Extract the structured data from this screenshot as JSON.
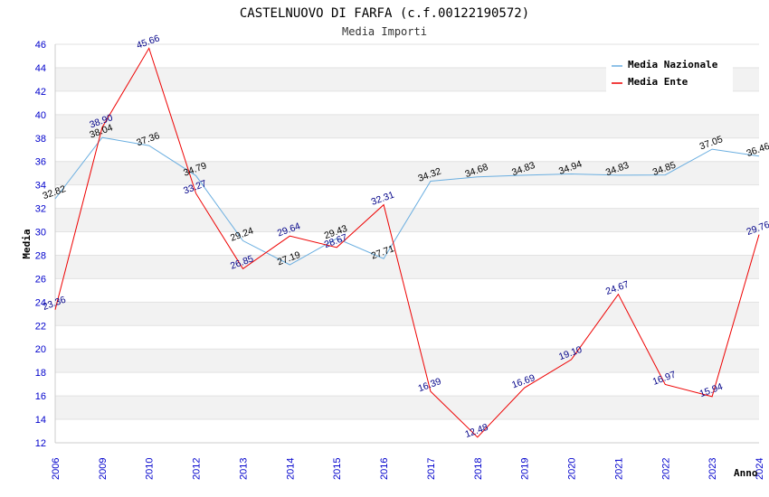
{
  "chart_data": {
    "type": "line",
    "title": "CASTELNUOVO DI FARFA (c.f.00122190572)",
    "subtitle": "Media Importi",
    "xlabel": "Anno",
    "ylabel": "Media",
    "categories": [
      "2006",
      "2009",
      "2010",
      "2012",
      "2013",
      "2014",
      "2015",
      "2016",
      "2017",
      "2018",
      "2019",
      "2020",
      "2021",
      "2022",
      "2023",
      "2024"
    ],
    "ylim": [
      12,
      46
    ],
    "yticks": [
      12,
      14,
      16,
      18,
      20,
      22,
      24,
      26,
      28,
      30,
      32,
      34,
      36,
      38,
      40,
      42,
      44,
      46
    ],
    "legend_position": "top-right",
    "series": [
      {
        "name": "Media Nazionale",
        "color": "#6aaee0",
        "values": [
          32.82,
          38.04,
          37.36,
          34.79,
          29.24,
          27.19,
          29.43,
          27.71,
          34.32,
          34.68,
          34.83,
          34.94,
          34.83,
          34.85,
          37.05,
          36.46
        ],
        "labels": [
          "32.82",
          "38.04",
          "37.36",
          "34.79",
          "29.24",
          "27.19",
          "29.43",
          "27.71",
          "34.32",
          "34.68",
          "34.83",
          "34.94",
          "34.83",
          "34.85",
          "37.05",
          "36.46"
        ]
      },
      {
        "name": "Media Ente",
        "color": "#ee0000",
        "values": [
          23.36,
          38.9,
          45.66,
          33.27,
          26.85,
          29.64,
          28.67,
          32.31,
          16.39,
          12.48,
          16.69,
          19.1,
          24.67,
          16.97,
          15.94,
          29.76
        ],
        "labels": [
          "23.36",
          "38.90",
          "45.66",
          "33.27",
          "26.85",
          "29.64",
          "28.67",
          "32.31",
          "16.39",
          "12.48",
          "16.69",
          "19.10",
          "24.67",
          "16.97",
          "15.94",
          "29.76"
        ]
      }
    ]
  }
}
